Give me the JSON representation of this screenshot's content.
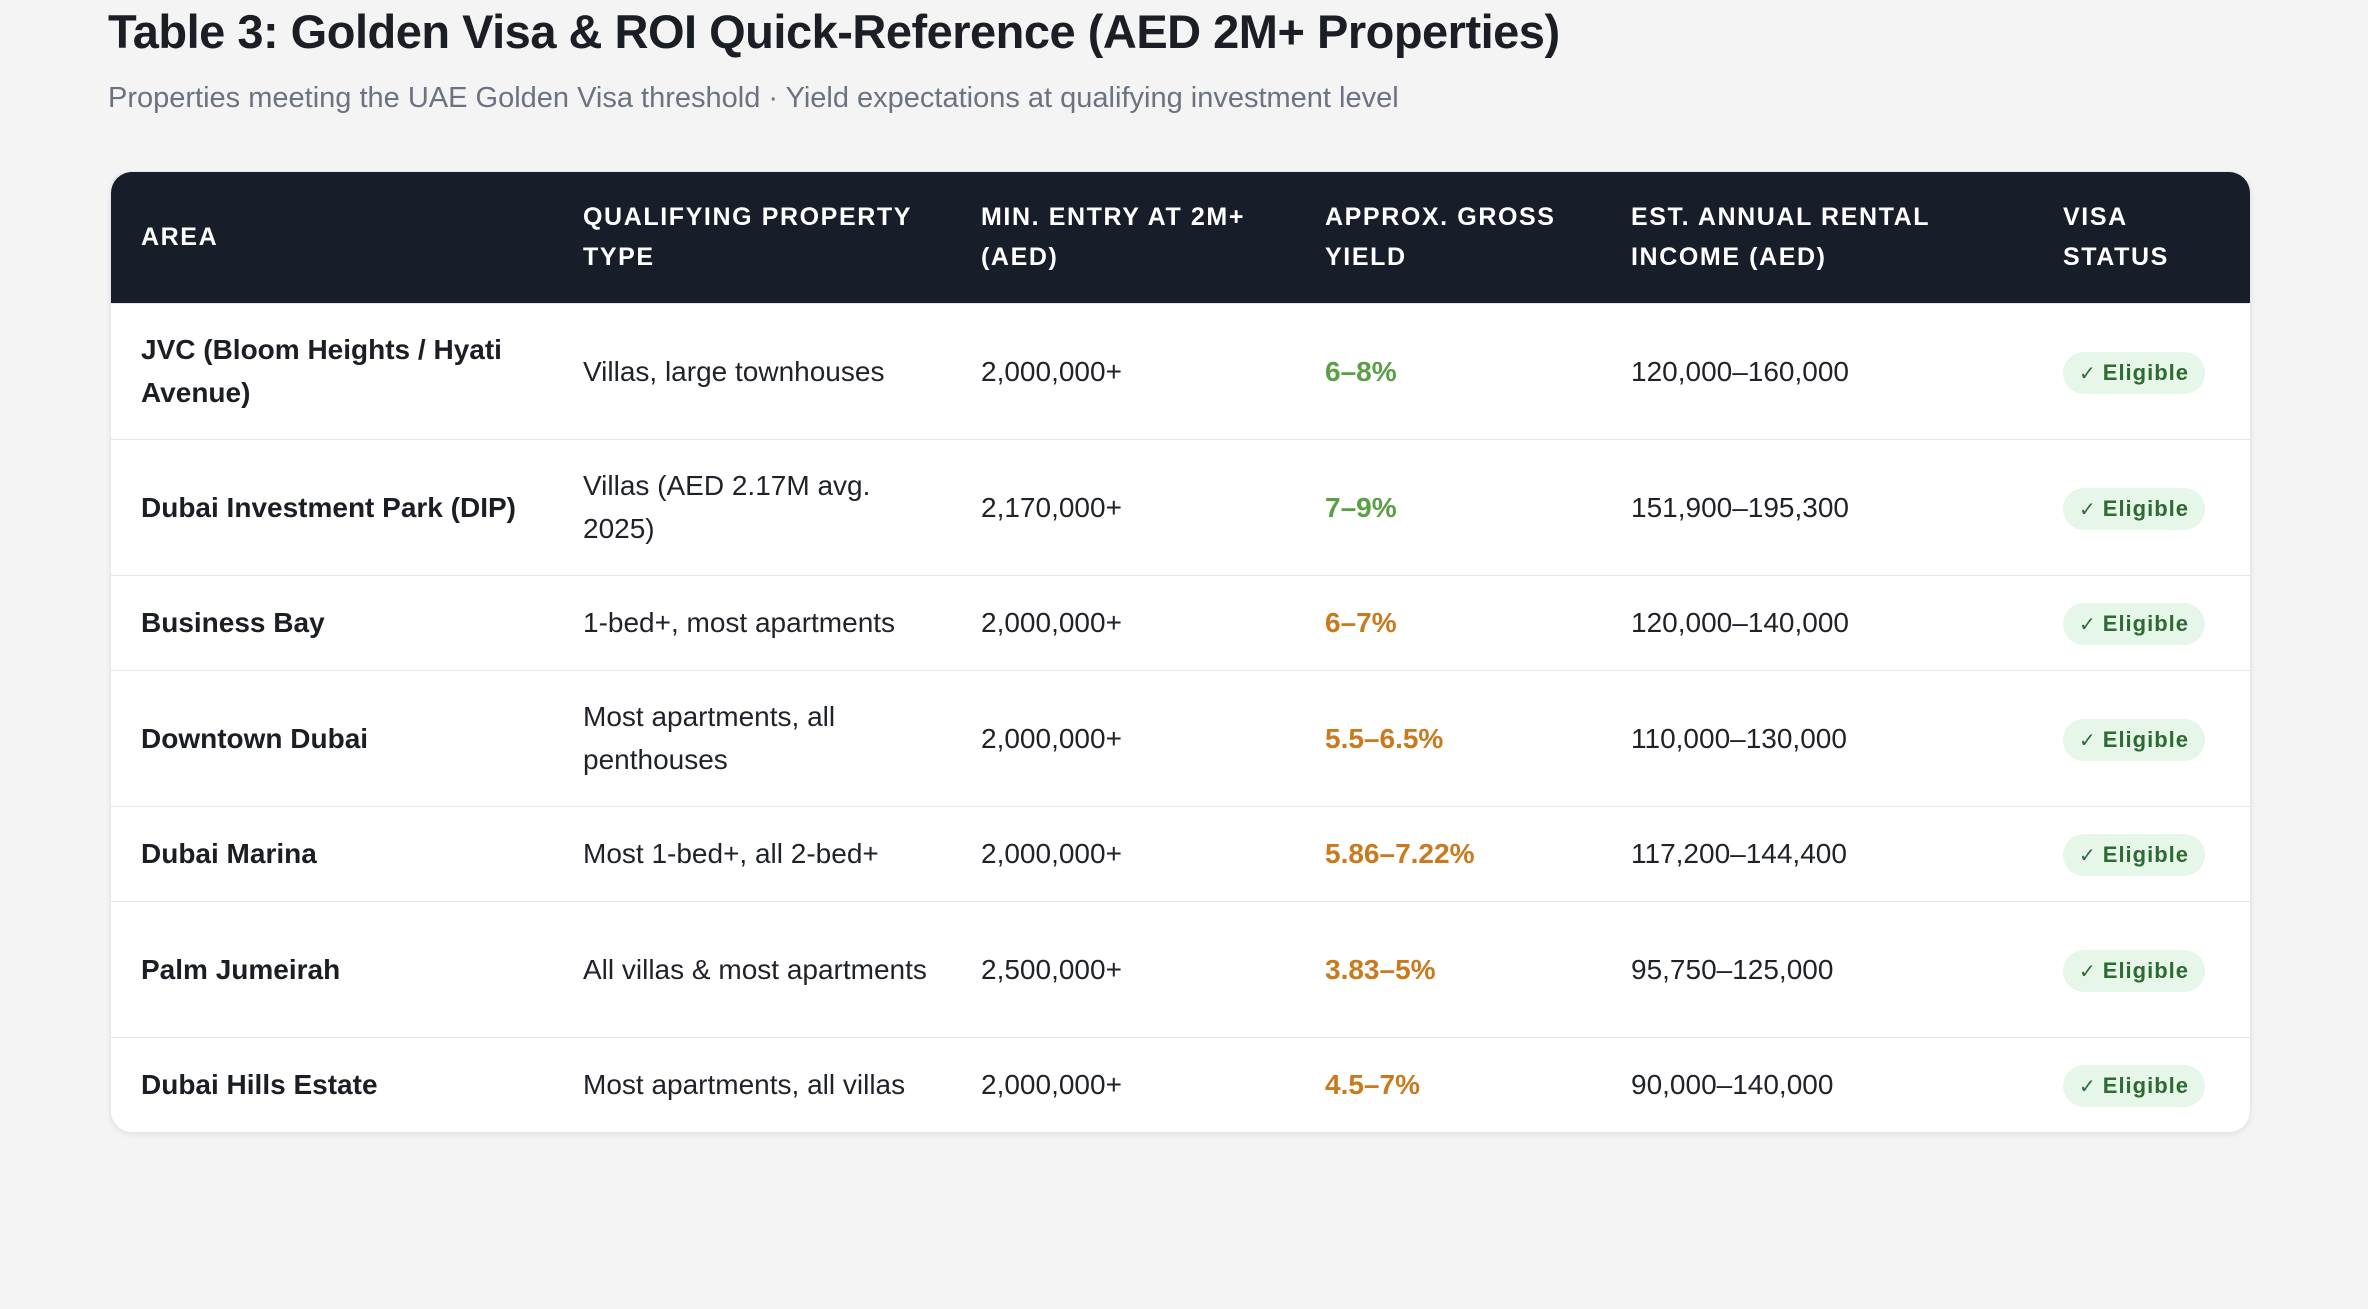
{
  "title": "Table 3: Golden Visa & ROI Quick-Reference (AED 2M+ Properties)",
  "subtitle": "Properties meeting the UAE Golden Visa threshold · Yield expectations at qualifying investment level",
  "colors": {
    "yield_high": "#5a9e45",
    "yield_mid": "#c97a1e",
    "header_bg": "#171d29"
  },
  "columns": [
    "Area",
    "Qualifying Property Type",
    "Min. Entry at 2M+ (AED)",
    "Approx. Gross Yield",
    "Est. Annual Rental Income (AED)",
    "Visa Status"
  ],
  "rows": [
    {
      "area": "JVC (Bloom Heights / Hyati Avenue)",
      "type": "Villas, large townhouses",
      "min_entry": "2,000,000+",
      "yield": "6–8%",
      "yield_level": "high",
      "income": "120,000–160,000",
      "status": "Eligible",
      "status_icon": "check-icon"
    },
    {
      "area": "Dubai Investment Park (DIP)",
      "type": "Villas (AED 2.17M avg. 2025)",
      "min_entry": "2,170,000+",
      "yield": "7–9%",
      "yield_level": "high",
      "income": "151,900–195,300",
      "status": "Eligible",
      "status_icon": "check-icon"
    },
    {
      "area": "Business Bay",
      "type": "1-bed+, most apartments",
      "min_entry": "2,000,000+",
      "yield": "6–7%",
      "yield_level": "mid",
      "income": "120,000–140,000",
      "status": "Eligible",
      "status_icon": "check-icon"
    },
    {
      "area": "Downtown Dubai",
      "type": "Most apartments, all penthouses",
      "min_entry": "2,000,000+",
      "yield": "5.5–6.5%",
      "yield_level": "mid",
      "income": "110,000–130,000",
      "status": "Eligible",
      "status_icon": "check-icon"
    },
    {
      "area": "Dubai Marina",
      "type": "Most 1-bed+, all 2-bed+",
      "min_entry": "2,000,000+",
      "yield": "5.86–7.22%",
      "yield_level": "mid",
      "income": "117,200–144,400",
      "status": "Eligible",
      "status_icon": "check-icon"
    },
    {
      "area": "Palm Jumeirah",
      "type": "All villas & most apartments",
      "min_entry": "2,500,000+",
      "yield": "3.83–5%",
      "yield_level": "mid",
      "income": "95,750–125,000",
      "status": "Eligible",
      "status_icon": "check-icon"
    },
    {
      "area": "Dubai Hills Estate",
      "type": "Most apartments, all villas",
      "min_entry": "2,000,000+",
      "yield": "4.5–7%",
      "yield_level": "mid",
      "income": "90,000–140,000",
      "status": "Eligible",
      "status_icon": "check-icon"
    }
  ]
}
